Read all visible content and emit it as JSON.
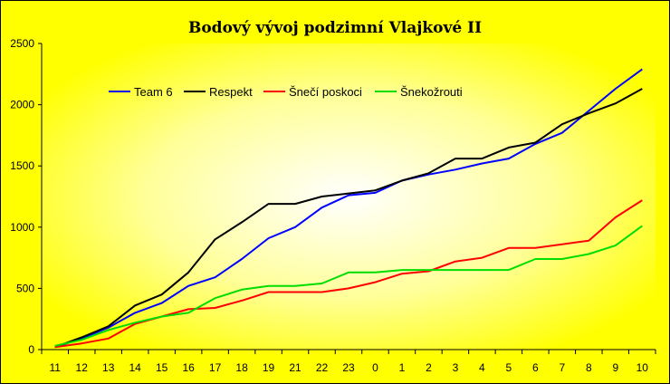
{
  "chart_data": {
    "type": "line",
    "title": "Bodový vývoj podzimní Vlajkové II",
    "xlabel": "",
    "ylabel": "",
    "categories": [
      "11",
      "12",
      "13",
      "14",
      "15",
      "16",
      "17",
      "18",
      "19",
      "21",
      "22",
      "23",
      "0",
      "1",
      "2",
      "3",
      "4",
      "5",
      "6",
      "7",
      "8",
      "9",
      "10"
    ],
    "ylim": [
      0,
      2500
    ],
    "yticks": [
      "0",
      "500",
      "1000",
      "1500",
      "2000",
      "2500"
    ],
    "grid": false,
    "legend_position": "top-left",
    "series": [
      {
        "name": "Team 6",
        "color": "#0000ff",
        "values": [
          20,
          90,
          180,
          300,
          380,
          520,
          590,
          740,
          910,
          1000,
          1160,
          1260,
          1280,
          1380,
          1430,
          1470,
          1520,
          1560,
          1680,
          1770,
          1950,
          2130,
          2290
        ]
      },
      {
        "name": "Respekt",
        "color": "#000000",
        "values": [
          20,
          100,
          190,
          360,
          450,
          630,
          900,
          1040,
          1190,
          1190,
          1250,
          1275,
          1300,
          1380,
          1440,
          1560,
          1560,
          1650,
          1690,
          1840,
          1930,
          2010,
          2130
        ]
      },
      {
        "name": "Šnečí poskoci",
        "color": "#ff0000",
        "values": [
          20,
          50,
          90,
          210,
          270,
          330,
          340,
          400,
          470,
          470,
          470,
          500,
          550,
          620,
          640,
          720,
          750,
          830,
          830,
          860,
          890,
          1080,
          1220
        ]
      },
      {
        "name": "Šnekožrouti",
        "color": "#00dd00",
        "values": [
          30,
          80,
          160,
          220,
          270,
          300,
          420,
          490,
          520,
          520,
          540,
          630,
          630,
          650,
          650,
          650,
          650,
          650,
          740,
          740,
          780,
          850,
          1010
        ]
      }
    ]
  }
}
